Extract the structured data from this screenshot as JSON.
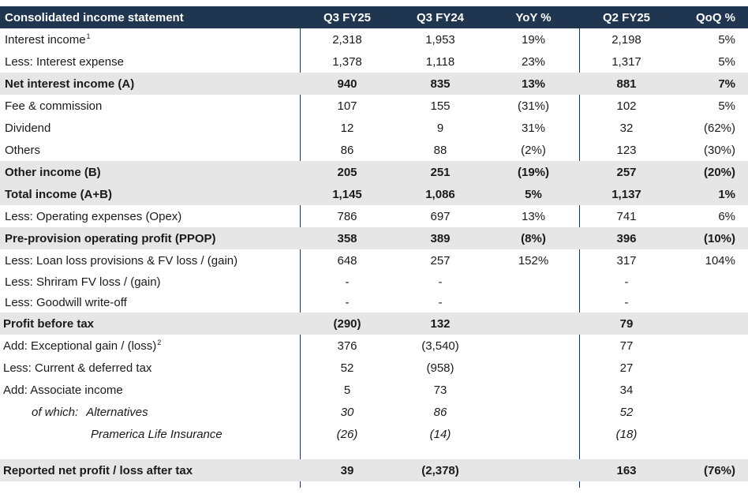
{
  "header": {
    "title": "Consolidated income statement",
    "cols": [
      "Q3 FY25",
      "Q3 FY24",
      "YoY %",
      "Q2 FY25",
      "QoQ %"
    ]
  },
  "rows": [
    {
      "label": "Interest income",
      "sup": "1",
      "q3": "2,318",
      "q3p": "1,953",
      "yoy": "19%",
      "q2": "2,198",
      "qoq": "5%"
    },
    {
      "label": "Less: Interest expense",
      "q3": "1,378",
      "q3p": "1,118",
      "yoy": "23%",
      "q2": "1,317",
      "qoq": "5%"
    },
    {
      "label": "Net interest income (A)",
      "q3": "940",
      "q3p": "835",
      "yoy": "13%",
      "q2": "881",
      "qoq": "7%"
    },
    {
      "label": "Fee & commission",
      "q3": "107",
      "q3p": "155",
      "yoy": "(31%)",
      "q2": "102",
      "qoq": "5%"
    },
    {
      "label": "Dividend",
      "q3": "12",
      "q3p": "9",
      "yoy": "31%",
      "q2": "32",
      "qoq": "(62%)"
    },
    {
      "label": "Others",
      "q3": "86",
      "q3p": "88",
      "yoy": "(2%)",
      "q2": "123",
      "qoq": "(30%)"
    },
    {
      "label": "Other income (B)",
      "q3": "205",
      "q3p": "251",
      "yoy": "(19%)",
      "q2": "257",
      "qoq": "(20%)"
    },
    {
      "label": "Total income (A+B)",
      "q3": "1,145",
      "q3p": "1,086",
      "yoy": "5%",
      "q2": "1,137",
      "qoq": "1%"
    },
    {
      "label": "Less: Operating expenses (Opex)",
      "q3": "786",
      "q3p": "697",
      "yoy": "13%",
      "q2": "741",
      "qoq": "6%"
    },
    {
      "label": "Pre-provision operating profit (PPOP)",
      "q3": "358",
      "q3p": "389",
      "yoy": "(8%)",
      "q2": "396",
      "qoq": "(10%)"
    },
    {
      "label": "Less: Loan loss provisions & FV loss / (gain)",
      "q3": "648",
      "q3p": "257",
      "yoy": "152%",
      "q2": "317",
      "qoq": "104%"
    },
    {
      "label": "Less: Shriram FV loss / (gain)",
      "q3": "-",
      "q3p": "-",
      "yoy": "",
      "q2": "-",
      "qoq": ""
    },
    {
      "label": "Less: Goodwill write-off",
      "q3": "-",
      "q3p": "-",
      "yoy": "",
      "q2": "-",
      "qoq": ""
    },
    {
      "label": "Profit before tax",
      "q3": "(290)",
      "q3p": "132",
      "yoy": "",
      "q2": "79",
      "qoq": ""
    },
    {
      "label": "Add: Exceptional gain / (loss)",
      "sup": "2",
      "q3": "376",
      "q3p": "(3,540)",
      "yoy": "",
      "q2": "77",
      "qoq": ""
    },
    {
      "label": "Less: Current & deferred tax",
      "q3": "52",
      "q3p": "(958)",
      "yoy": "",
      "q2": "27",
      "qoq": ""
    },
    {
      "label": "Add: Associate income",
      "q3": "5",
      "q3p": "73",
      "yoy": "",
      "q2": "34",
      "qoq": ""
    },
    {
      "label_a": "of which:",
      "label_b": "Alternatives",
      "q3": "30",
      "q3p": "86",
      "yoy": "",
      "q2": "52",
      "qoq": ""
    },
    {
      "label": "Pramerica Life Insurance",
      "q3": "(26)",
      "q3p": "(14)",
      "yoy": "",
      "q2": "(18)",
      "qoq": ""
    },
    {
      "label": "Reported net profit / loss after tax",
      "q3": "39",
      "q3p": "(2,378)",
      "yoy": "",
      "q2": "163",
      "qoq": "(76%)"
    }
  ]
}
